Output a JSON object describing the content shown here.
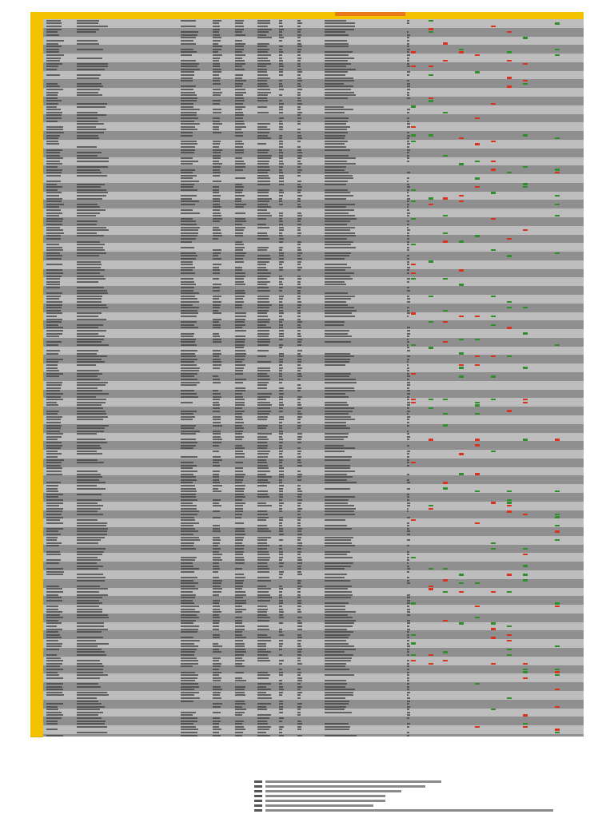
{
  "document": {
    "title": "",
    "legend_title": "",
    "row_count": 250
  },
  "colors": {
    "header": "#f2c200",
    "header_accent": "#e87a1c",
    "row_light": "#bdbdbd",
    "row_dark": "#8f8f8f",
    "status_red": "#d8331f",
    "status_green": "#2f8f2f"
  }
}
